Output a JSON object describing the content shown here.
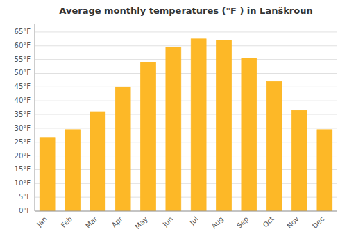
{
  "chart_data": {
    "type": "bar",
    "title": "Average monthly temperatures (°F ) in Lanškroun",
    "categories": [
      "Jan",
      "Feb",
      "Mar",
      "Apr",
      "May",
      "Jun",
      "Jul",
      "Aug",
      "Sep",
      "Oct",
      "Nov",
      "Dec"
    ],
    "values": [
      26.5,
      29.5,
      36.0,
      45.0,
      54.0,
      59.5,
      62.5,
      62.0,
      55.5,
      47.0,
      36.5,
      29.5
    ],
    "color": "#FDB827",
    "ylim": [
      0,
      68
    ],
    "yticks": [
      {
        "value": 0,
        "label": "0°F"
      },
      {
        "value": 5,
        "label": "5°F"
      },
      {
        "value": 10,
        "label": "10°F"
      },
      {
        "value": 15,
        "label": "15°F"
      },
      {
        "value": 20,
        "label": "20°F"
      },
      {
        "value": 25,
        "label": "25°F"
      },
      {
        "value": 30,
        "label": "30°F"
      },
      {
        "value": 35,
        "label": "35°F"
      },
      {
        "value": 40,
        "label": "40°F"
      },
      {
        "value": 45,
        "label": "45°F"
      },
      {
        "value": 50,
        "label": "50°F"
      },
      {
        "value": 55,
        "label": "55°F"
      },
      {
        "value": 60,
        "label": "60°F"
      },
      {
        "value": 65,
        "label": "65°F"
      }
    ],
    "grid": true
  }
}
